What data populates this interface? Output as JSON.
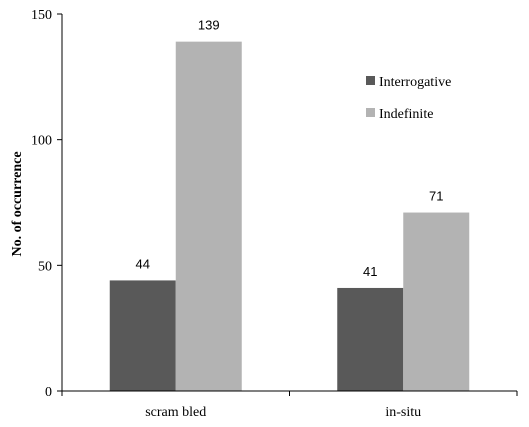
{
  "chart_data": {
    "type": "bar",
    "title": "",
    "xlabel": "",
    "ylabel": "No. of occurrence",
    "ylim": [
      0,
      150
    ],
    "yticks": [
      0,
      50,
      100,
      150
    ],
    "categories": [
      "scram bled",
      "in-situ"
    ],
    "series": [
      {
        "name": "Interrogative",
        "values": [
          44,
          41
        ],
        "color": "#595959"
      },
      {
        "name": "Indefinite",
        "values": [
          139,
          71
        ],
        "color": "#b3b3b3"
      }
    ],
    "legend_position": "right",
    "grid": false
  }
}
